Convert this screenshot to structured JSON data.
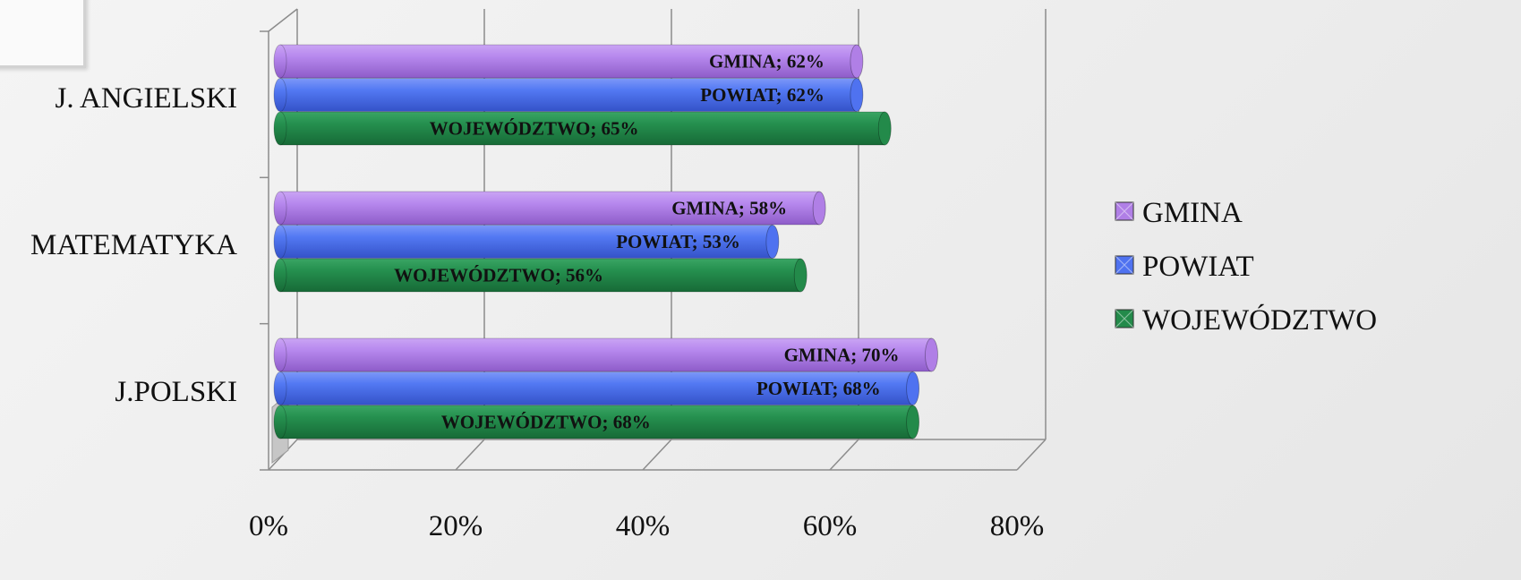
{
  "chart_data": {
    "type": "bar",
    "orientation": "horizontal",
    "categories": [
      "J. ANGIELSKI",
      "MATEMATYKA",
      "J.POLSKI"
    ],
    "series": [
      {
        "name": "GMINA",
        "values": [
          62,
          58,
          70
        ],
        "color": "#b07fe6"
      },
      {
        "name": "POWIAT",
        "values": [
          62,
          53,
          68
        ],
        "color": "#4f72f0"
      },
      {
        "name": "WOJEWÓDZTWO",
        "values": [
          65,
          56,
          68
        ],
        "color": "#238a4a"
      }
    ],
    "data_labels": [
      [
        "GMINA; 62%",
        "POWIAT; 62%",
        "WOJEWÓDZTWO; 65%"
      ],
      [
        "GMINA; 58%",
        "POWIAT; 53%",
        "WOJEWÓDZTWO; 56%"
      ],
      [
        "GMINA; 70%",
        "POWIAT; 68%",
        "WOJEWÓDZTWO; 68%"
      ]
    ],
    "xlim": [
      0,
      80
    ],
    "x_ticks": [
      "0%",
      "20%",
      "40%",
      "60%",
      "80%"
    ],
    "grid": true,
    "legend_position": "right",
    "style": "3d-cylinder"
  }
}
